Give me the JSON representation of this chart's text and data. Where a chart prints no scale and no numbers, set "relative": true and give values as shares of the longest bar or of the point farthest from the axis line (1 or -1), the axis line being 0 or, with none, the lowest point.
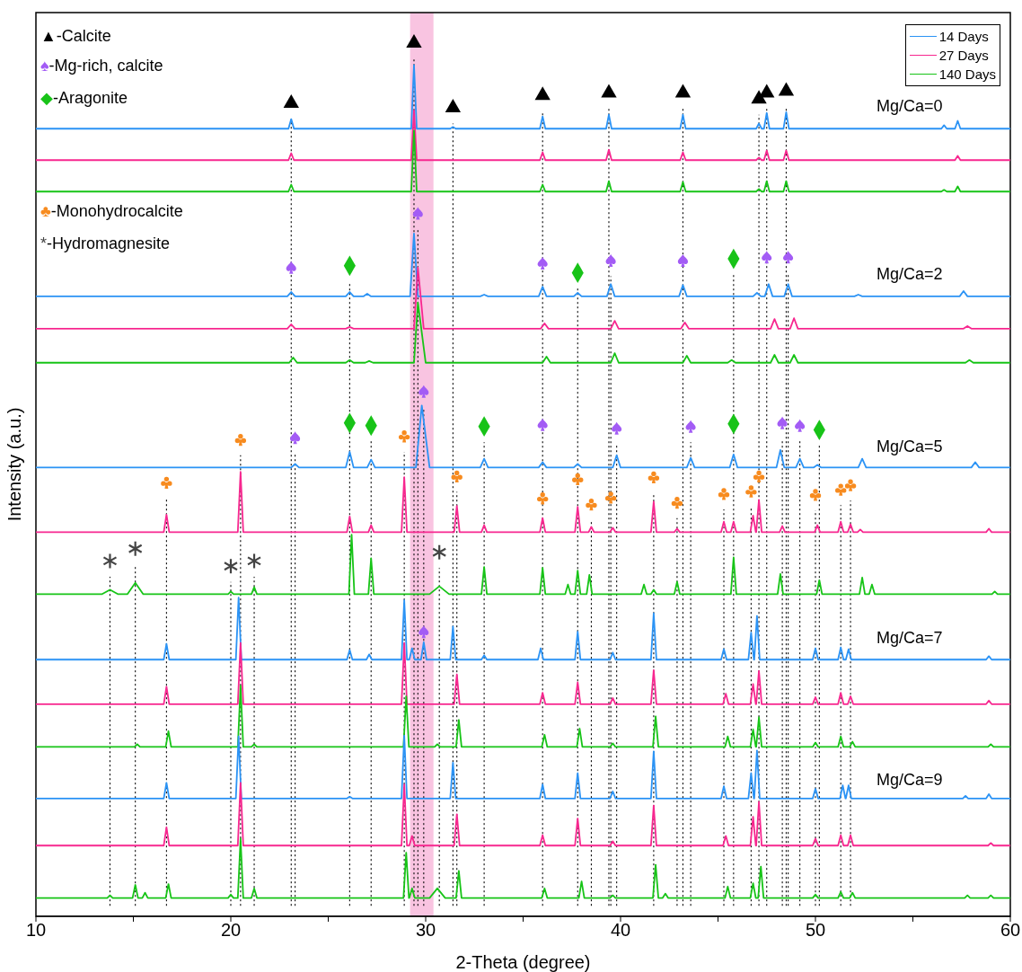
{
  "chart_data": {
    "type": "line",
    "relative": true,
    "xlabel": "2-Theta (degree)",
    "ylabel": "Intensity (a.u.)",
    "xlim": [
      10,
      60
    ],
    "xticks": [
      10,
      {
        "value": 15,
        "label": null
      },
      20,
      {
        "value": 25,
        "label": null
      },
      30,
      {
        "value": 35,
        "label": null
      },
      40,
      {
        "value": 45,
        "label": null
      },
      50,
      {
        "value": 55,
        "label": null
      },
      60
    ],
    "legend": "top right",
    "bands": [
      {
        "axis": "x",
        "from": 29.2,
        "to": 30.4,
        "color": "#f9c4e1"
      }
    ],
    "ref_lines": [
      {
        "axis": "x",
        "value": 13.8,
        "color": "#000000",
        "line_style": "dotted"
      },
      {
        "axis": "x",
        "value": 15.1,
        "color": "#000000",
        "line_style": "dotted"
      },
      {
        "axis": "x",
        "value": 16.7,
        "color": "#000000",
        "line_style": "dotted"
      },
      {
        "axis": "x",
        "value": 20,
        "color": "#000000",
        "line_style": "dotted"
      },
      {
        "axis": "x",
        "value": 20.5,
        "color": "#000000",
        "line_style": "dotted"
      },
      {
        "axis": "x",
        "value": 21.2,
        "color": "#000000",
        "line_style": "dotted"
      },
      {
        "axis": "x",
        "value": 23.1,
        "color": "#000000",
        "line_style": "dotted"
      },
      {
        "axis": "x",
        "value": 23.3,
        "color": "#000000",
        "line_style": "dotted"
      },
      {
        "axis": "x",
        "value": 26.1,
        "color": "#000000",
        "line_style": "dotted"
      },
      {
        "axis": "x",
        "value": 27.2,
        "color": "#000000",
        "line_style": "dotted"
      },
      {
        "axis": "x",
        "value": 28.9,
        "color": "#000000",
        "line_style": "dotted"
      },
      {
        "axis": "x",
        "value": 29.4,
        "color": "#000000",
        "line_style": "dotted"
      },
      {
        "axis": "x",
        "value": 29.6,
        "color": "#000000",
        "line_style": "dotted"
      },
      {
        "axis": "x",
        "value": 29.9,
        "color": "#000000",
        "line_style": "dotted"
      },
      {
        "axis": "x",
        "value": 30.7,
        "color": "#000000",
        "line_style": "dotted"
      },
      {
        "axis": "x",
        "value": 31.4,
        "color": "#000000",
        "line_style": "dotted"
      },
      {
        "axis": "x",
        "value": 31.6,
        "color": "#000000",
        "line_style": "dotted"
      },
      {
        "axis": "x",
        "value": 33,
        "color": "#000000",
        "line_style": "dotted"
      },
      {
        "axis": "x",
        "value": 36,
        "color": "#000000",
        "line_style": "dotted"
      },
      {
        "axis": "x",
        "value": 37.8,
        "color": "#000000",
        "line_style": "dotted"
      },
      {
        "axis": "x",
        "value": 38.5,
        "color": "#000000",
        "line_style": "dotted"
      },
      {
        "axis": "x",
        "value": 39.4,
        "color": "#000000",
        "line_style": "dotted"
      },
      {
        "axis": "x",
        "value": 39.5,
        "color": "#000000",
        "line_style": "dotted"
      },
      {
        "axis": "x",
        "value": 39.8,
        "color": "#000000",
        "line_style": "dotted"
      },
      {
        "axis": "x",
        "value": 41.7,
        "color": "#000000",
        "line_style": "dotted"
      },
      {
        "axis": "x",
        "value": 42.9,
        "color": "#000000",
        "line_style": "dotted"
      },
      {
        "axis": "x",
        "value": 43.2,
        "color": "#000000",
        "line_style": "dotted"
      },
      {
        "axis": "x",
        "value": 43.6,
        "color": "#000000",
        "line_style": "dotted"
      },
      {
        "axis": "x",
        "value": 45.3,
        "color": "#000000",
        "line_style": "dotted"
      },
      {
        "axis": "x",
        "value": 45.8,
        "color": "#000000",
        "line_style": "dotted"
      },
      {
        "axis": "x",
        "value": 46.7,
        "color": "#000000",
        "line_style": "dotted"
      },
      {
        "axis": "x",
        "value": 47.1,
        "color": "#000000",
        "line_style": "dotted"
      },
      {
        "axis": "x",
        "value": 47.5,
        "color": "#000000",
        "line_style": "dotted"
      },
      {
        "axis": "x",
        "value": 48.3,
        "color": "#000000",
        "line_style": "dotted"
      },
      {
        "axis": "x",
        "value": 48.5,
        "color": "#000000",
        "line_style": "dotted"
      },
      {
        "axis": "x",
        "value": 48.6,
        "color": "#000000",
        "line_style": "dotted"
      },
      {
        "axis": "x",
        "value": 49.2,
        "color": "#000000",
        "line_style": "dotted"
      },
      {
        "axis": "x",
        "value": 50,
        "color": "#000000",
        "line_style": "dotted"
      },
      {
        "axis": "x",
        "value": 50.2,
        "color": "#000000",
        "line_style": "dotted"
      },
      {
        "axis": "x",
        "value": 51.3,
        "color": "#000000",
        "line_style": "dotted"
      },
      {
        "axis": "x",
        "value": 51.8,
        "color": "#000000",
        "line_style": "dotted"
      }
    ],
    "annotations": [
      "▲-Calcite",
      "♠-Mg-rich, calcite",
      "◆-Aragonite",
      "♣-Monohydrocalcite",
      "*-Hydromagnesite",
      "Mg/Ca=0",
      "Mg/Ca=2",
      "Mg/Ca=5",
      "Mg/Ca=7",
      "Mg/Ca=9"
    ],
    "series": [
      {
        "name": "14 Days",
        "color": "#2b93f5",
        "x": [
          10,
          22.96,
          23.1,
          23.24,
          29.26,
          29.4,
          29.54,
          31.26,
          31.4,
          31.54,
          35.86,
          36,
          36.14,
          39.26,
          39.4,
          39.54,
          43.06,
          43.2,
          43.34,
          46.96,
          47.1,
          47.24,
          47.36,
          47.5,
          47.64,
          48.36,
          48.5,
          48.64,
          56.46,
          56.6,
          56.74,
          57.16,
          57.3,
          57.44,
          60
        ],
        "values": [
          0.902,
          0.902,
          0.913,
          0.902,
          0.902,
          0.975,
          0.902,
          0.902,
          0.904,
          0.902,
          0.902,
          0.916,
          0.902,
          0.902,
          0.918,
          0.902,
          0.902,
          0.918,
          0.902,
          0.902,
          0.908,
          0.902,
          0.902,
          0.92,
          0.902,
          0.902,
          0.921,
          0.902,
          0.902,
          0.906,
          0.902,
          0.902,
          0.911,
          0.902,
          0.902
        ]
      },
      {
        "name": "27 Days",
        "color": "#f7278f",
        "x": [
          10,
          22.96,
          23.1,
          23.24,
          29.26,
          29.4,
          29.54,
          35.86,
          36,
          36.14,
          39.26,
          39.4,
          39.54,
          43.06,
          43.2,
          43.34,
          46.96,
          47.1,
          47.24,
          47.36,
          47.5,
          47.64,
          48.36,
          48.5,
          48.64,
          57.16,
          57.3,
          57.44,
          60
        ],
        "values": [
          0.866,
          0.866,
          0.874,
          0.866,
          0.866,
          0.923,
          0.866,
          0.866,
          0.875,
          0.866,
          0.866,
          0.878,
          0.866,
          0.866,
          0.875,
          0.866,
          0.866,
          0.869,
          0.866,
          0.866,
          0.877,
          0.866,
          0.866,
          0.877,
          0.866,
          0.866,
          0.871,
          0.866,
          0.866
        ]
      },
      {
        "name": "140 Days",
        "color": "#17c417",
        "x": [
          10,
          22.96,
          23.1,
          23.24,
          29.26,
          29.4,
          29.54,
          35.86,
          36,
          36.14,
          39.26,
          39.4,
          39.54,
          43.06,
          43.2,
          43.34,
          46.96,
          47.1,
          47.24,
          47.36,
          47.5,
          47.64,
          48.36,
          48.5,
          48.64,
          56.46,
          56.6,
          56.74,
          57.16,
          57.3,
          57.44,
          60
        ],
        "values": [
          0.83,
          0.83,
          0.838,
          0.83,
          0.83,
          0.9,
          0.83,
          0.83,
          0.838,
          0.83,
          0.83,
          0.842,
          0.83,
          0.83,
          0.841,
          0.83,
          0.83,
          0.833,
          0.83,
          0.83,
          0.842,
          0.83,
          0.83,
          0.842,
          0.83,
          0.83,
          0.832,
          0.83,
          0.83,
          0.836,
          0.83,
          0.83
        ]
      },
      {
        "color": "#2b93f5",
        "x": [
          10,
          22.9,
          23.1,
          23.3,
          25.9,
          26.1,
          26.3,
          26.8,
          27,
          27.2,
          29.2,
          29.4,
          29.6,
          32.8,
          33,
          33.2,
          35.8,
          36,
          36.2,
          37.6,
          37.8,
          38,
          39.3,
          39.5,
          39.7,
          43,
          43.2,
          43.4,
          46.8,
          47,
          47.2,
          47.4,
          47.6,
          47.8,
          48.4,
          48.6,
          48.8,
          52,
          52.2,
          52.4,
          57.4,
          57.6,
          57.8,
          60
        ],
        "values": [
          0.71,
          0.71,
          0.715,
          0.71,
          0.71,
          0.715,
          0.71,
          0.71,
          0.713,
          0.71,
          0.71,
          0.782,
          0.71,
          0.71,
          0.712,
          0.71,
          0.71,
          0.721,
          0.71,
          0.71,
          0.714,
          0.71,
          0.71,
          0.724,
          0.71,
          0.71,
          0.723,
          0.71,
          0.71,
          0.714,
          0.71,
          0.71,
          0.724,
          0.71,
          0.71,
          0.724,
          0.71,
          0.71,
          0.712,
          0.71,
          0.71,
          0.716,
          0.71,
          0.71
        ]
      },
      {
        "color": "#f7278f",
        "x": [
          10,
          22.9,
          23.1,
          23.3,
          25.9,
          26.1,
          26.3,
          29.4,
          29.6,
          29.9,
          35.9,
          36.1,
          36.3,
          39.5,
          39.7,
          39.9,
          43.1,
          43.3,
          43.5,
          47.7,
          47.9,
          48.1,
          48.7,
          48.9,
          49.1,
          57.6,
          57.8,
          58,
          60
        ],
        "values": [
          0.673,
          0.673,
          0.678,
          0.673,
          0.673,
          0.675,
          0.673,
          0.673,
          0.743,
          0.673,
          0.673,
          0.679,
          0.673,
          0.673,
          0.682,
          0.673,
          0.673,
          0.68,
          0.673,
          0.673,
          0.684,
          0.673,
          0.673,
          0.685,
          0.673,
          0.673,
          0.676,
          0.673,
          0.673
        ]
      },
      {
        "color": "#17c417",
        "x": [
          10,
          23,
          23.2,
          23.4,
          25.9,
          26.1,
          26.3,
          26.9,
          27.1,
          27.3,
          29.4,
          29.6,
          30,
          36,
          36.2,
          36.4,
          39.5,
          39.7,
          39.9,
          43.2,
          43.4,
          43.6,
          45.5,
          45.7,
          45.9,
          47.7,
          47.9,
          48.1,
          48.7,
          48.9,
          49.1,
          57.7,
          57.9,
          58.1,
          60
        ],
        "values": [
          0.634,
          0.634,
          0.64,
          0.634,
          0.634,
          0.637,
          0.634,
          0.634,
          0.636,
          0.634,
          0.634,
          0.703,
          0.634,
          0.634,
          0.641,
          0.634,
          0.634,
          0.645,
          0.634,
          0.634,
          0.642,
          0.634,
          0.634,
          0.637,
          0.634,
          0.634,
          0.643,
          0.634,
          0.634,
          0.643,
          0.634,
          0.634,
          0.637,
          0.634,
          0.634
        ]
      },
      {
        "color": "#2b93f5",
        "x": [
          10,
          23.1,
          23.3,
          23.5,
          25.9,
          26.1,
          26.3,
          27,
          27.2,
          27.4,
          29.5,
          29.8,
          30.2,
          32.8,
          33,
          33.2,
          35.8,
          36,
          36.2,
          37.6,
          37.8,
          38,
          39.6,
          39.8,
          40,
          43.4,
          43.6,
          43.8,
          45.6,
          45.8,
          46,
          48,
          48.2,
          48.4,
          49,
          49.2,
          49.4,
          49.9,
          50.1,
          50.3,
          52.2,
          52.4,
          52.6,
          58,
          58.2,
          58.4,
          60
        ],
        "values": [
          0.514,
          0.514,
          0.518,
          0.514,
          0.514,
          0.532,
          0.514,
          0.514,
          0.523,
          0.514,
          0.514,
          0.585,
          0.514,
          0.514,
          0.524,
          0.514,
          0.514,
          0.52,
          0.514,
          0.514,
          0.518,
          0.514,
          0.514,
          0.528,
          0.514,
          0.514,
          0.525,
          0.514,
          0.514,
          0.529,
          0.514,
          0.514,
          0.534,
          0.514,
          0.514,
          0.524,
          0.514,
          0.514,
          0.517,
          0.514,
          0.514,
          0.524,
          0.514,
          0.514,
          0.52,
          0.514,
          0.514
        ]
      },
      {
        "color": "#f7278f",
        "x": [
          10,
          16.56,
          16.7,
          16.84,
          20.36,
          20.5,
          20.64,
          25.96,
          26.1,
          26.24,
          27.06,
          27.2,
          27.34,
          28.76,
          28.9,
          29.04,
          31.46,
          31.6,
          31.74,
          32.86,
          33,
          33.14,
          35.86,
          36,
          36.14,
          37.66,
          37.8,
          37.94,
          38.36,
          38.5,
          38.64,
          39.46,
          39.6,
          39.74,
          41.56,
          41.7,
          41.84,
          42.76,
          42.9,
          43.04,
          45.16,
          45.3,
          45.44,
          45.66,
          45.8,
          45.94,
          46.66,
          46.8,
          46.94,
          46.96,
          47.1,
          47.24,
          48.16,
          48.3,
          48.44,
          49.96,
          50.1,
          50.24,
          51.16,
          51.3,
          51.44,
          51.66,
          51.8,
          51.94,
          52.16,
          52.3,
          52.44,
          58.76,
          58.9,
          59.04,
          60
        ],
        "values": [
          0.44,
          0.44,
          0.46,
          0.44,
          0.44,
          0.509,
          0.44,
          0.44,
          0.458,
          0.44,
          0.44,
          0.448,
          0.44,
          0.44,
          0.503,
          0.44,
          0.44,
          0.47,
          0.44,
          0.44,
          0.448,
          0.44,
          0.44,
          0.456,
          0.44,
          0.44,
          0.469,
          0.44,
          0.44,
          0.446,
          0.44,
          0.44,
          0.445,
          0.44,
          0.44,
          0.475,
          0.44,
          0.44,
          0.444,
          0.44,
          0.44,
          0.452,
          0.44,
          0.44,
          0.452,
          0.44,
          0.44,
          0.459,
          0.44,
          0.44,
          0.477,
          0.44,
          0.44,
          0.447,
          0.44,
          0.44,
          0.448,
          0.44,
          0.44,
          0.452,
          0.44,
          0.44,
          0.449,
          0.44,
          0.44,
          0.443,
          0.44,
          0.44,
          0.444,
          0.44,
          0.44
        ]
      },
      {
        "color": "#17c417",
        "x": [
          10,
          13.4,
          13.8,
          14.2,
          14.7,
          15.1,
          15.5,
          19.86,
          20,
          20.14,
          21.06,
          21.2,
          21.34,
          26.06,
          26.2,
          26.34,
          27.06,
          27.2,
          27.34,
          30.2,
          30.7,
          31.2,
          32.86,
          33,
          33.14,
          35.86,
          36,
          36.14,
          37.16,
          37.3,
          37.44,
          37.66,
          37.8,
          37.94,
          38.26,
          38.4,
          38.54,
          41.06,
          41.2,
          41.34,
          41.56,
          41.7,
          41.84,
          42.76,
          42.9,
          43.04,
          45.66,
          45.8,
          45.94,
          48.06,
          48.2,
          48.34,
          50.06,
          50.2,
          50.34,
          52.26,
          52.4,
          52.54,
          52.76,
          52.9,
          53.04,
          59.06,
          59.2,
          59.34,
          60
        ],
        "values": [
          0.369,
          0.369,
          0.374,
          0.369,
          0.369,
          0.382,
          0.369,
          0.369,
          0.372,
          0.369,
          0.369,
          0.377,
          0.369,
          0.369,
          0.437,
          0.369,
          0.369,
          0.41,
          0.369,
          0.369,
          0.378,
          0.369,
          0.369,
          0.4,
          0.369,
          0.369,
          0.399,
          0.369,
          0.369,
          0.38,
          0.369,
          0.369,
          0.396,
          0.369,
          0.369,
          0.391,
          0.369,
          0.369,
          0.38,
          0.369,
          0.369,
          0.374,
          0.369,
          0.369,
          0.383,
          0.369,
          0.369,
          0.411,
          0.369,
          0.369,
          0.392,
          0.369,
          0.369,
          0.385,
          0.369,
          0.369,
          0.388,
          0.369,
          0.369,
          0.38,
          0.369,
          0.369,
          0.372,
          0.369,
          0.369
        ]
      },
      {
        "color": "#2b93f5",
        "x": [
          10,
          16.56,
          16.7,
          16.84,
          20.26,
          20.4,
          20.54,
          25.96,
          26.1,
          26.24,
          26.96,
          27.1,
          27.24,
          28.76,
          28.9,
          29.04,
          29.16,
          29.3,
          29.44,
          29.76,
          29.9,
          30.04,
          31.26,
          31.4,
          31.54,
          32.86,
          33,
          33.14,
          35.76,
          35.9,
          36.04,
          37.66,
          37.8,
          37.94,
          39.46,
          39.6,
          39.74,
          41.56,
          41.7,
          41.84,
          45.16,
          45.3,
          45.44,
          46.56,
          46.7,
          46.84,
          46.86,
          47,
          47.14,
          49.86,
          50,
          50.14,
          51.16,
          51.3,
          51.44,
          51.56,
          51.7,
          51.84,
          58.76,
          58.9,
          59.04,
          60
        ],
        "values": [
          0.294,
          0.294,
          0.312,
          0.294,
          0.294,
          0.365,
          0.294,
          0.294,
          0.305,
          0.294,
          0.294,
          0.3,
          0.294,
          0.294,
          0.362,
          0.294,
          0.294,
          0.307,
          0.294,
          0.294,
          0.314,
          0.294,
          0.294,
          0.332,
          0.294,
          0.294,
          0.299,
          0.294,
          0.294,
          0.307,
          0.294,
          0.294,
          0.326,
          0.294,
          0.294,
          0.302,
          0.294,
          0.294,
          0.347,
          0.294,
          0.294,
          0.306,
          0.294,
          0.294,
          0.325,
          0.294,
          0.294,
          0.344,
          0.294,
          0.294,
          0.307,
          0.294,
          0.294,
          0.308,
          0.294,
          0.294,
          0.306,
          0.294,
          0.294,
          0.298,
          0.294,
          0.294
        ]
      },
      {
        "color": "#f7278f",
        "x": [
          10,
          16.56,
          16.7,
          16.84,
          20.36,
          20.5,
          20.64,
          28.76,
          28.9,
          29.04,
          31.46,
          31.6,
          31.74,
          35.86,
          36,
          36.14,
          37.66,
          37.8,
          37.94,
          39.46,
          39.6,
          39.74,
          41.56,
          41.7,
          41.84,
          45.26,
          45.4,
          45.54,
          46.66,
          46.8,
          46.94,
          46.96,
          47.1,
          47.24,
          49.86,
          50,
          50.14,
          51.16,
          51.3,
          51.44,
          51.66,
          51.8,
          51.94,
          58.76,
          58.9,
          59.04,
          60
        ],
        "values": [
          0.243,
          0.243,
          0.263,
          0.243,
          0.243,
          0.313,
          0.243,
          0.243,
          0.313,
          0.243,
          0.243,
          0.277,
          0.243,
          0.243,
          0.256,
          0.243,
          0.243,
          0.268,
          0.243,
          0.243,
          0.25,
          0.243,
          0.243,
          0.282,
          0.243,
          0.243,
          0.255,
          0.243,
          0.243,
          0.266,
          0.243,
          0.243,
          0.281,
          0.243,
          0.243,
          0.251,
          0.243,
          0.243,
          0.256,
          0.243,
          0.243,
          0.252,
          0.243,
          0.243,
          0.247,
          0.243,
          0.243
        ]
      },
      {
        "color": "#17c417",
        "x": [
          10,
          15.06,
          15.2,
          15.34,
          16.66,
          16.8,
          16.94,
          20.36,
          20.5,
          20.64,
          21.06,
          21.2,
          21.34,
          28.86,
          29,
          29.14,
          30.46,
          30.6,
          30.74,
          31.56,
          31.7,
          31.84,
          35.96,
          36.1,
          36.24,
          37.76,
          37.9,
          38.04,
          39.46,
          39.6,
          39.74,
          41.66,
          41.8,
          41.94,
          45.36,
          45.5,
          45.64,
          46.66,
          46.8,
          46.94,
          46.96,
          47.1,
          47.24,
          49.86,
          50,
          50.14,
          51.16,
          51.3,
          51.44,
          51.76,
          51.9,
          52.04,
          58.86,
          59,
          59.14,
          60
        ],
        "values": [
          0.194,
          0.194,
          0.197,
          0.194,
          0.194,
          0.212,
          0.194,
          0.194,
          0.264,
          0.194,
          0.194,
          0.197,
          0.194,
          0.194,
          0.252,
          0.194,
          0.194,
          0.197,
          0.194,
          0.194,
          0.225,
          0.194,
          0.194,
          0.208,
          0.194,
          0.194,
          0.215,
          0.194,
          0.194,
          0.198,
          0.194,
          0.194,
          0.229,
          0.194,
          0.194,
          0.206,
          0.194,
          0.194,
          0.214,
          0.194,
          0.194,
          0.228,
          0.194,
          0.194,
          0.199,
          0.194,
          0.194,
          0.206,
          0.194,
          0.194,
          0.2,
          0.194,
          0.194,
          0.197,
          0.194,
          0.194
        ]
      },
      {
        "color": "#2b93f5",
        "x": [
          10,
          16.56,
          16.7,
          16.84,
          20.26,
          20.4,
          20.54,
          25.96,
          26.1,
          26.24,
          28.76,
          28.9,
          29.04,
          31.26,
          31.4,
          31.54,
          35.86,
          36,
          36.14,
          37.66,
          37.8,
          37.94,
          39.46,
          39.6,
          39.74,
          41.56,
          41.7,
          41.84,
          45.16,
          45.3,
          45.44,
          46.56,
          46.7,
          46.84,
          46.86,
          47,
          47.14,
          49.86,
          50,
          50.14,
          51.26,
          51.4,
          51.54,
          51.56,
          51.7,
          51.84,
          57.56,
          57.7,
          57.84,
          58.76,
          58.9,
          59.04,
          60
        ],
        "values": [
          0.135,
          0.135,
          0.153,
          0.135,
          0.135,
          0.206,
          0.135,
          0.135,
          0.137,
          0.135,
          0.135,
          0.207,
          0.135,
          0.135,
          0.176,
          0.135,
          0.135,
          0.151,
          0.135,
          0.135,
          0.164,
          0.135,
          0.135,
          0.143,
          0.135,
          0.135,
          0.189,
          0.135,
          0.135,
          0.149,
          0.135,
          0.135,
          0.164,
          0.135,
          0.135,
          0.19,
          0.135,
          0.135,
          0.146,
          0.135,
          0.135,
          0.15,
          0.135,
          0.135,
          0.15,
          0.135,
          0.135,
          0.138,
          0.135,
          0.135,
          0.14,
          0.135,
          0.135
        ]
      },
      {
        "color": "#f7278f",
        "x": [
          10,
          16.56,
          16.7,
          16.84,
          20.36,
          20.5,
          20.64,
          28.76,
          28.9,
          29.04,
          29.16,
          29.3,
          29.44,
          31.46,
          31.6,
          31.74,
          35.86,
          36,
          36.14,
          37.66,
          37.8,
          37.94,
          39.46,
          39.6,
          39.74,
          41.56,
          41.7,
          41.84,
          45.26,
          45.4,
          45.54,
          46.66,
          46.8,
          46.94,
          46.96,
          47.1,
          47.24,
          49.86,
          50,
          50.14,
          51.16,
          51.3,
          51.44,
          51.66,
          51.8,
          51.94,
          58.86,
          59,
          59.14,
          60
        ],
        "values": [
          0.081,
          0.081,
          0.102,
          0.081,
          0.081,
          0.153,
          0.081,
          0.081,
          0.151,
          0.081,
          0.081,
          0.092,
          0.081,
          0.081,
          0.117,
          0.081,
          0.081,
          0.093,
          0.081,
          0.081,
          0.112,
          0.081,
          0.081,
          0.086,
          0.081,
          0.081,
          0.127,
          0.081,
          0.081,
          0.092,
          0.081,
          0.081,
          0.114,
          0.081,
          0.081,
          0.131,
          0.081,
          0.081,
          0.089,
          0.081,
          0.081,
          0.093,
          0.081,
          0.081,
          0.093,
          0.081,
          0.081,
          0.084,
          0.081,
          0.081
        ]
      },
      {
        "color": "#17c417",
        "x": [
          10,
          13.66,
          13.8,
          13.94,
          14.96,
          15.1,
          15.24,
          15.46,
          15.6,
          15.74,
          16.66,
          16.8,
          16.94,
          19.86,
          20,
          20.14,
          20.36,
          20.5,
          20.64,
          21.06,
          21.2,
          21.34,
          28.86,
          29,
          29.14,
          29.16,
          29.3,
          29.44,
          30.2,
          30.6,
          31,
          31.56,
          31.7,
          31.84,
          35.96,
          36.1,
          36.24,
          37.86,
          38,
          38.14,
          39.46,
          39.6,
          39.74,
          41.66,
          41.8,
          41.94,
          42.16,
          42.3,
          42.44,
          45.36,
          45.5,
          45.64,
          46.66,
          46.8,
          46.94,
          47.06,
          47.2,
          47.34,
          49.86,
          50,
          50.14,
          51.16,
          51.3,
          51.44,
          51.76,
          51.9,
          52.04,
          57.66,
          57.8,
          57.94,
          58.86,
          59,
          59.14,
          60
        ],
        "values": [
          0.021,
          0.021,
          0.024,
          0.021,
          0.021,
          0.036,
          0.021,
          0.021,
          0.027,
          0.021,
          0.021,
          0.037,
          0.021,
          0.021,
          0.025,
          0.021,
          0.021,
          0.089,
          0.021,
          0.021,
          0.032,
          0.021,
          0.021,
          0.073,
          0.021,
          0.021,
          0.032,
          0.021,
          0.021,
          0.032,
          0.021,
          0.021,
          0.052,
          0.021,
          0.021,
          0.032,
          0.021,
          0.021,
          0.04,
          0.021,
          0.021,
          0.024,
          0.021,
          0.021,
          0.059,
          0.021,
          0.021,
          0.026,
          0.021,
          0.021,
          0.034,
          0.021,
          0.021,
          0.038,
          0.021,
          0.021,
          0.057,
          0.021,
          0.021,
          0.025,
          0.021,
          0.021,
          0.028,
          0.021,
          0.021,
          0.027,
          0.021,
          0.021,
          0.024,
          0.021,
          0.021,
          0.024,
          0.021,
          0.021
        ]
      },
      {
        "type": "scatter",
        "marker": "triangle",
        "color": "#000000",
        "x": [
          23.1,
          29.4,
          31.4,
          36,
          39.4,
          43.2,
          47.1,
          47.5,
          48.5
        ],
        "values": [
          0.931,
          1,
          0.926,
          0.94,
          0.943,
          0.943,
          0.936,
          0.943,
          0.945
        ]
      },
      {
        "type": "scatter",
        "color": "#a35cf5",
        "x": [
          23.1,
          29.6,
          36,
          39.5,
          43.2,
          47.5,
          48.6,
          23.3,
          29.9,
          36,
          39.8,
          43.6,
          48.3,
          49.2,
          29.9
        ],
        "values": [
          0.743,
          0.805,
          0.748,
          0.751,
          0.751,
          0.755,
          0.755,
          0.548,
          0.601,
          0.563,
          0.559,
          0.561,
          0.565,
          0.562,
          0.326
        ]
      },
      {
        "type": "scatter",
        "marker": "diamond",
        "color": "#18c318",
        "x": [
          26.1,
          37.8,
          45.8,
          26.1,
          27.2,
          33,
          45.8,
          50.2
        ],
        "values": [
          0.745,
          0.737,
          0.753,
          0.565,
          0.562,
          0.561,
          0.564,
          0.557
        ]
      },
      {
        "type": "scatter",
        "color": "#f78b1f",
        "x": [
          16.7,
          20.5,
          28.9,
          31.6,
          36,
          37.8,
          38.5,
          39.5,
          41.7,
          42.9,
          45.3,
          46.7,
          47.1,
          50,
          51.3,
          51.8
        ],
        "values": [
          0.497,
          0.546,
          0.55,
          0.504,
          0.479,
          0.501,
          0.472,
          0.48,
          0.503,
          0.474,
          0.484,
          0.487,
          0.504,
          0.483,
          0.489,
          0.494
        ]
      },
      {
        "type": "scatter",
        "color": "#444444",
        "x": [
          13.8,
          15.1,
          20,
          21.2,
          30.7
        ],
        "values": [
          0.407,
          0.421,
          0.401,
          0.407,
          0.417
        ]
      }
    ]
  }
}
